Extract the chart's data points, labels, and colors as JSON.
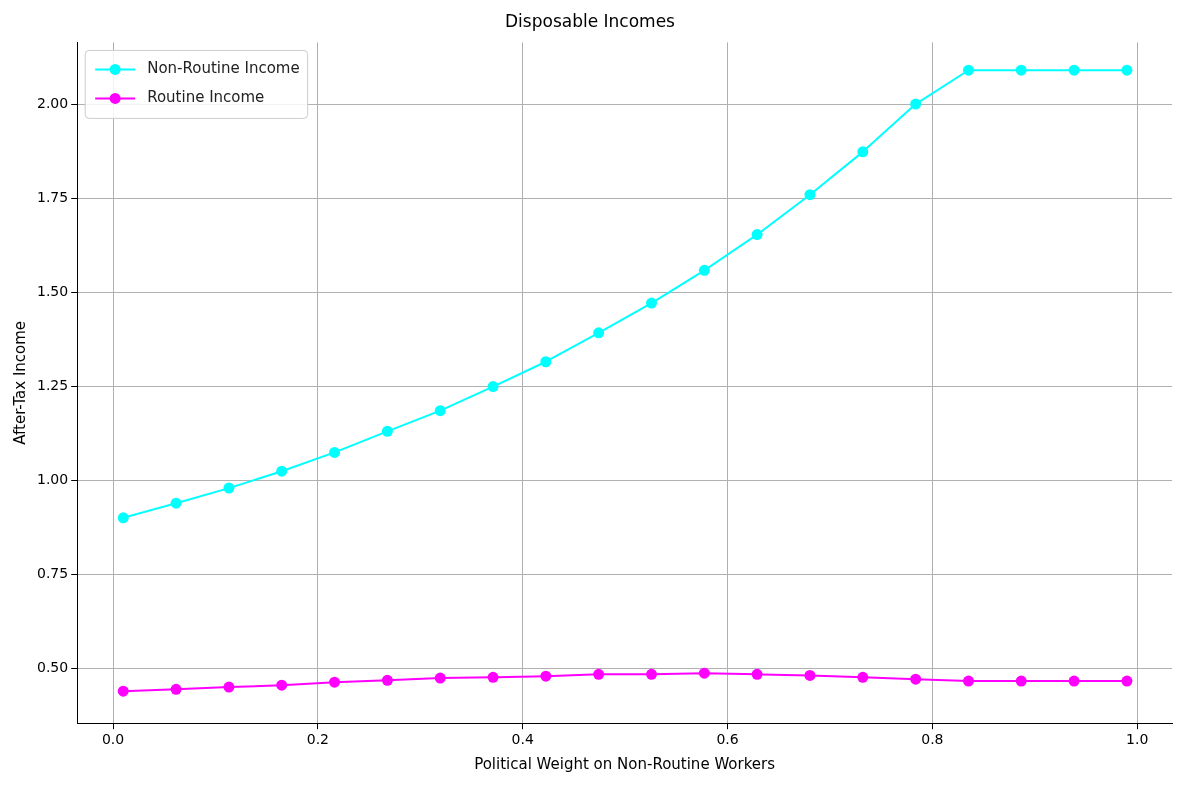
{
  "chart_data": {
    "type": "line",
    "title": "Disposable Incomes",
    "xlabel": "Political Weight on Non-Routine Workers",
    "ylabel": "After-Tax Income",
    "x": [
      0.01,
      0.0616,
      0.1132,
      0.1647,
      0.2163,
      0.2679,
      0.3195,
      0.3711,
      0.4226,
      0.4742,
      0.5258,
      0.5774,
      0.6289,
      0.6805,
      0.7321,
      0.7837,
      0.8353,
      0.8868,
      0.9384,
      0.99
    ],
    "series": [
      {
        "name": "Non-Routine Income",
        "color": "#00ffff",
        "values": [
          0.9,
          0.939,
          0.979,
          1.024,
          1.074,
          1.13,
          1.185,
          1.249,
          1.315,
          1.392,
          1.471,
          1.558,
          1.653,
          1.759,
          1.873,
          2.0,
          2.09,
          2.09,
          2.09,
          2.09
        ]
      },
      {
        "name": "Routine Income",
        "color": "#ff00ff",
        "values": [
          0.439,
          0.444,
          0.45,
          0.455,
          0.463,
          0.468,
          0.474,
          0.476,
          0.479,
          0.484,
          0.484,
          0.487,
          0.484,
          0.481,
          0.476,
          0.471,
          0.466,
          0.466,
          0.466,
          0.466
        ]
      }
    ],
    "xlim": [
      -0.035,
      1.034
    ],
    "xticks": [
      {
        "value": 0,
        "label": "0.0"
      },
      {
        "value": 0.2,
        "label": "0.2"
      },
      {
        "value": 0.4,
        "label": "0.4"
      },
      {
        "value": 0.6,
        "label": "0.6"
      },
      {
        "value": 0.8,
        "label": "0.8"
      },
      {
        "value": 1,
        "label": "1.0"
      }
    ],
    "ylim": [
      0.354,
      2.164
    ],
    "yticks": [
      {
        "value": 0.5,
        "label": "0.50"
      },
      {
        "value": 0.75,
        "label": "0.75"
      },
      {
        "value": 1,
        "label": "1.00"
      },
      {
        "value": 1.25,
        "label": "1.25"
      },
      {
        "value": 1.5,
        "label": "1.50"
      },
      {
        "value": 1.75,
        "label": "1.75"
      },
      {
        "value": 2,
        "label": "2.00"
      }
    ],
    "grid": true,
    "legend": "top left",
    "marker": "circle",
    "line_style": "solid"
  }
}
